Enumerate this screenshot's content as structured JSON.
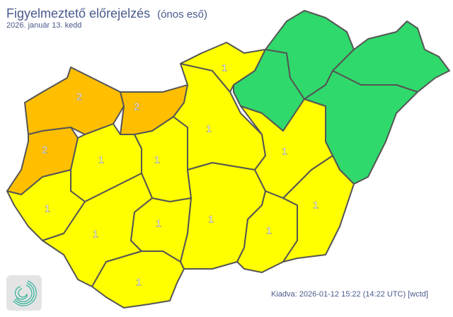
{
  "header": {
    "title": "Figyelmeztető előrejelzés",
    "subtitle": "(ónos eső)",
    "date": "2026. január 13. kedd"
  },
  "footer": {
    "issued": "Kiadva: 2026-01-12 15:22 (14:22 UTC) [wctd]"
  },
  "level_colors": {
    "0": "#2fd96b",
    "1": "#ffff00",
    "2": "#ffbf00"
  },
  "border_color": "#555555",
  "counties": [
    {
      "id": "gyor-moson-sopron",
      "level": 2,
      "label": "2"
    },
    {
      "id": "komarom-esztergom",
      "level": 2,
      "label": "2"
    },
    {
      "id": "vas",
      "level": 2,
      "label": "2"
    },
    {
      "id": "veszprem",
      "level": 1,
      "label": "1"
    },
    {
      "id": "zala",
      "level": 1,
      "label": "1"
    },
    {
      "id": "fejer",
      "level": 1,
      "label": "1"
    },
    {
      "id": "somogy",
      "level": 1,
      "label": "1"
    },
    {
      "id": "tolna",
      "level": 1,
      "label": "1"
    },
    {
      "id": "baranya",
      "level": 1,
      "label": "1"
    },
    {
      "id": "pest",
      "level": 1,
      "label": "1"
    },
    {
      "id": "nograd",
      "level": 1,
      "label": "1"
    },
    {
      "id": "bacs-kiskun",
      "level": 1,
      "label": "1"
    },
    {
      "id": "heves",
      "level": 0,
      "label": ""
    },
    {
      "id": "jasz-nagykun-szolnok",
      "level": 1,
      "label": "1"
    },
    {
      "id": "borsod-abauj-zemplen",
      "level": 0,
      "label": ""
    },
    {
      "id": "szabolcs-szatmar-bereg",
      "level": 0,
      "label": ""
    },
    {
      "id": "hajdu-bihar",
      "level": 0,
      "label": ""
    },
    {
      "id": "csongrad-csanad",
      "level": 1,
      "label": "1"
    },
    {
      "id": "bekes",
      "level": 1,
      "label": "1"
    }
  ]
}
